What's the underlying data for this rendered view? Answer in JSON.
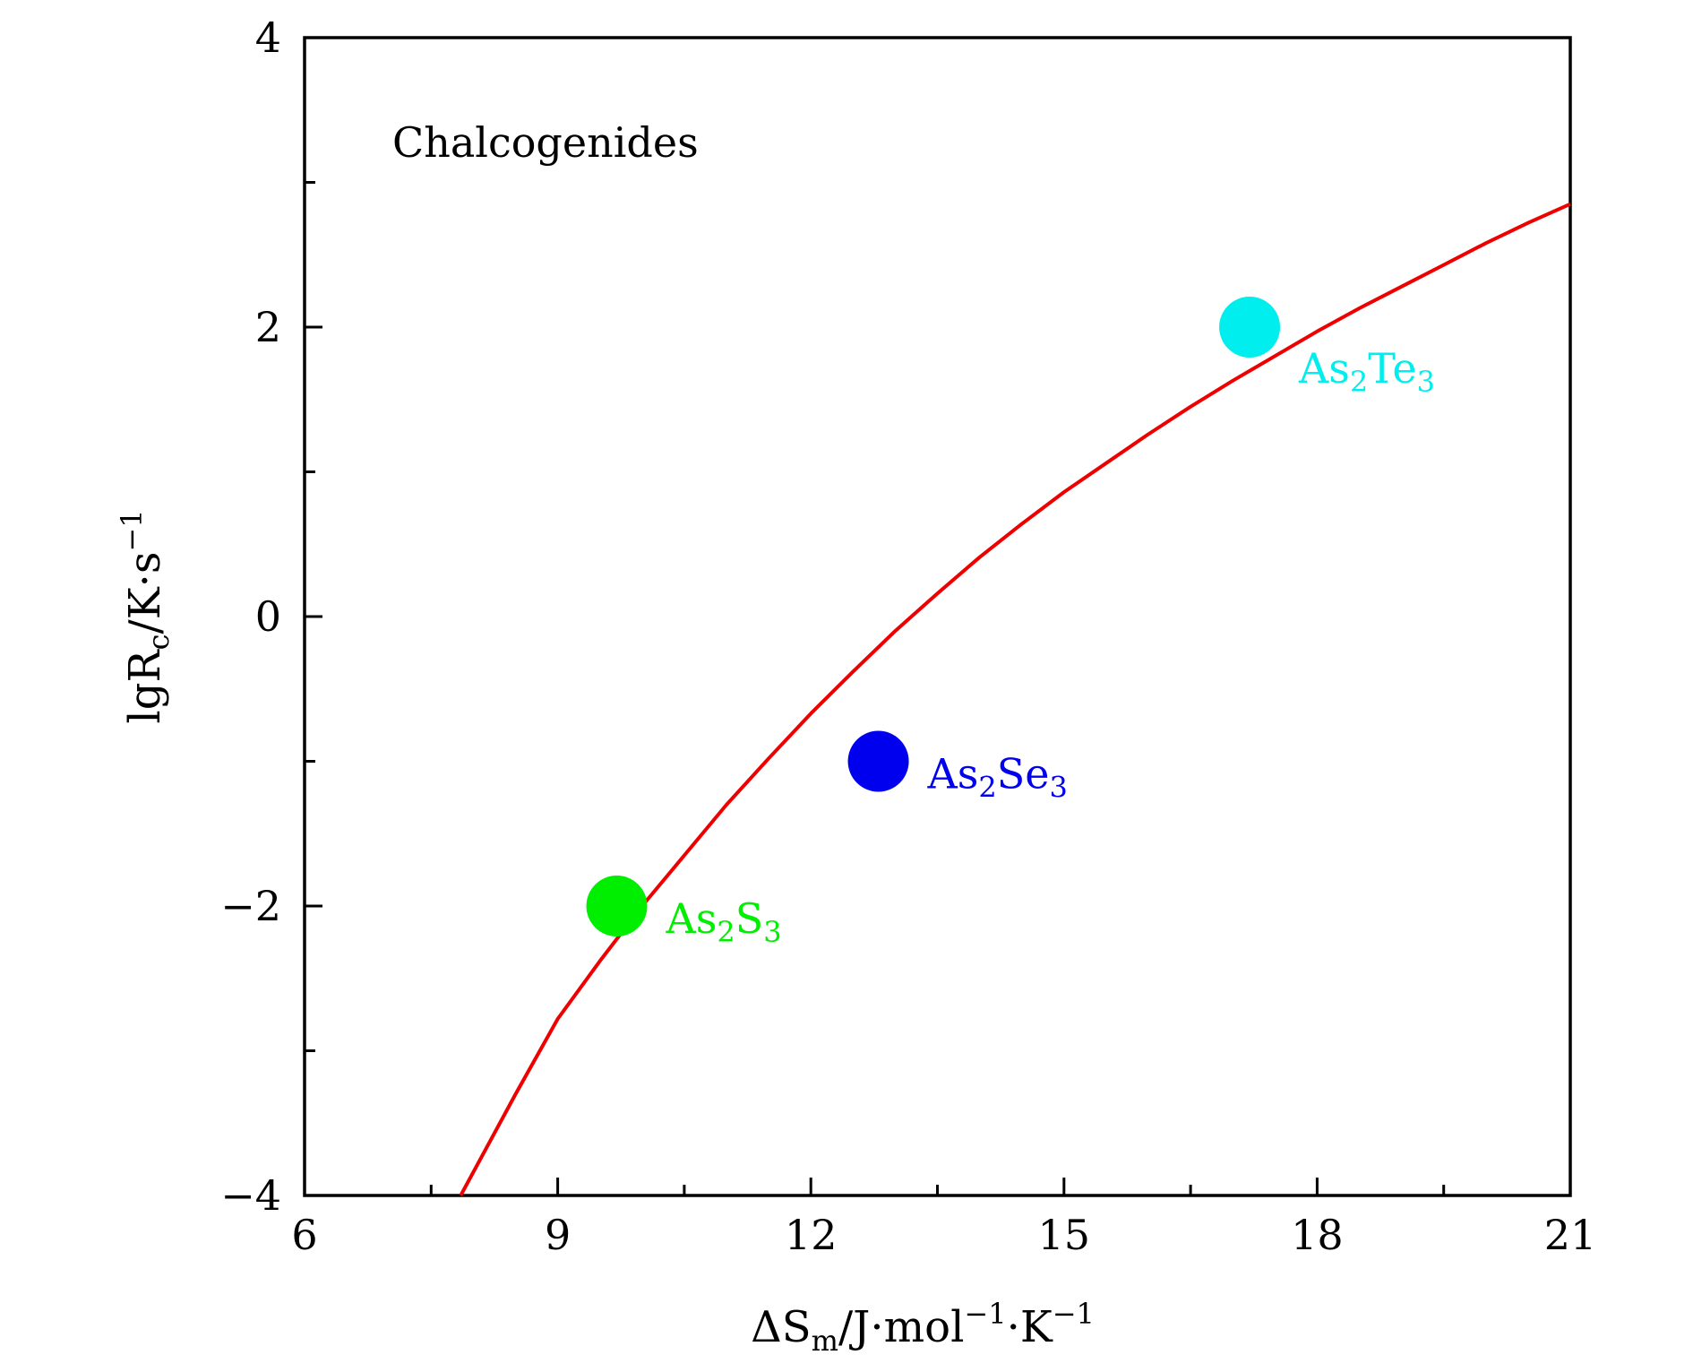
{
  "chart_data": {
    "type": "scatter",
    "title": "",
    "annotation": "Chalcogenides",
    "xlabel": {
      "prefix": "ΔS",
      "sub": "m",
      "rest": "/J·mol",
      "exp1": "−1",
      "mid": "·K",
      "exp2": "−1"
    },
    "ylabel": {
      "prefix": "lgR",
      "sub": "c",
      "rest": "/K·s",
      "exp": "−1"
    },
    "xlim": [
      6,
      21
    ],
    "ylim": [
      -4,
      4
    ],
    "x_ticks": [
      6,
      9,
      12,
      15,
      18,
      21
    ],
    "x_tick_labels": [
      "6",
      "9",
      "12",
      "15",
      "18",
      "21"
    ],
    "x_minor_ticks": [
      7.5,
      10.5,
      13.5,
      16.5,
      19.5
    ],
    "y_ticks": [
      -4,
      -2,
      0,
      2,
      4
    ],
    "y_tick_labels": [
      "−4",
      "−2",
      "0",
      "2",
      "4"
    ],
    "y_minor_ticks": [
      -3,
      -1,
      1,
      3
    ],
    "grid": false,
    "points": [
      {
        "name": "As2S3",
        "label": {
          "a": "As",
          "s1": "2",
          "b": "S",
          "s2": "3"
        },
        "x": 9.7,
        "y": -2.0,
        "color": "#00ee00"
      },
      {
        "name": "As2Se3",
        "label": {
          "a": "As",
          "s1": "2",
          "b": "Se",
          "s2": "3"
        },
        "x": 12.8,
        "y": -1.0,
        "color": "#0000ee"
      },
      {
        "name": "As2Te3",
        "label": {
          "a": "As",
          "s1": "2",
          "b": "Te",
          "s2": "3"
        },
        "x": 17.2,
        "y": 2.0,
        "color": "#00eeee"
      }
    ],
    "curve": {
      "name": "fit-curve",
      "color": "#ee0000",
      "x": [
        7.85,
        8.5,
        9.0,
        9.5,
        10.0,
        10.5,
        11.0,
        11.5,
        12.0,
        12.5,
        13.0,
        13.5,
        14.0,
        14.5,
        15.0,
        15.5,
        16.0,
        16.5,
        17.0,
        17.5,
        18.0,
        18.5,
        19.0,
        19.5,
        20.0,
        20.5,
        21.0
      ],
      "y": [
        -4.0,
        -3.3,
        -2.78,
        -2.38,
        -2.0,
        -1.65,
        -1.3,
        -0.98,
        -0.67,
        -0.38,
        -0.1,
        0.16,
        0.41,
        0.64,
        0.86,
        1.06,
        1.26,
        1.45,
        1.63,
        1.8,
        1.97,
        2.13,
        2.28,
        2.43,
        2.58,
        2.72,
        2.85
      ]
    }
  }
}
